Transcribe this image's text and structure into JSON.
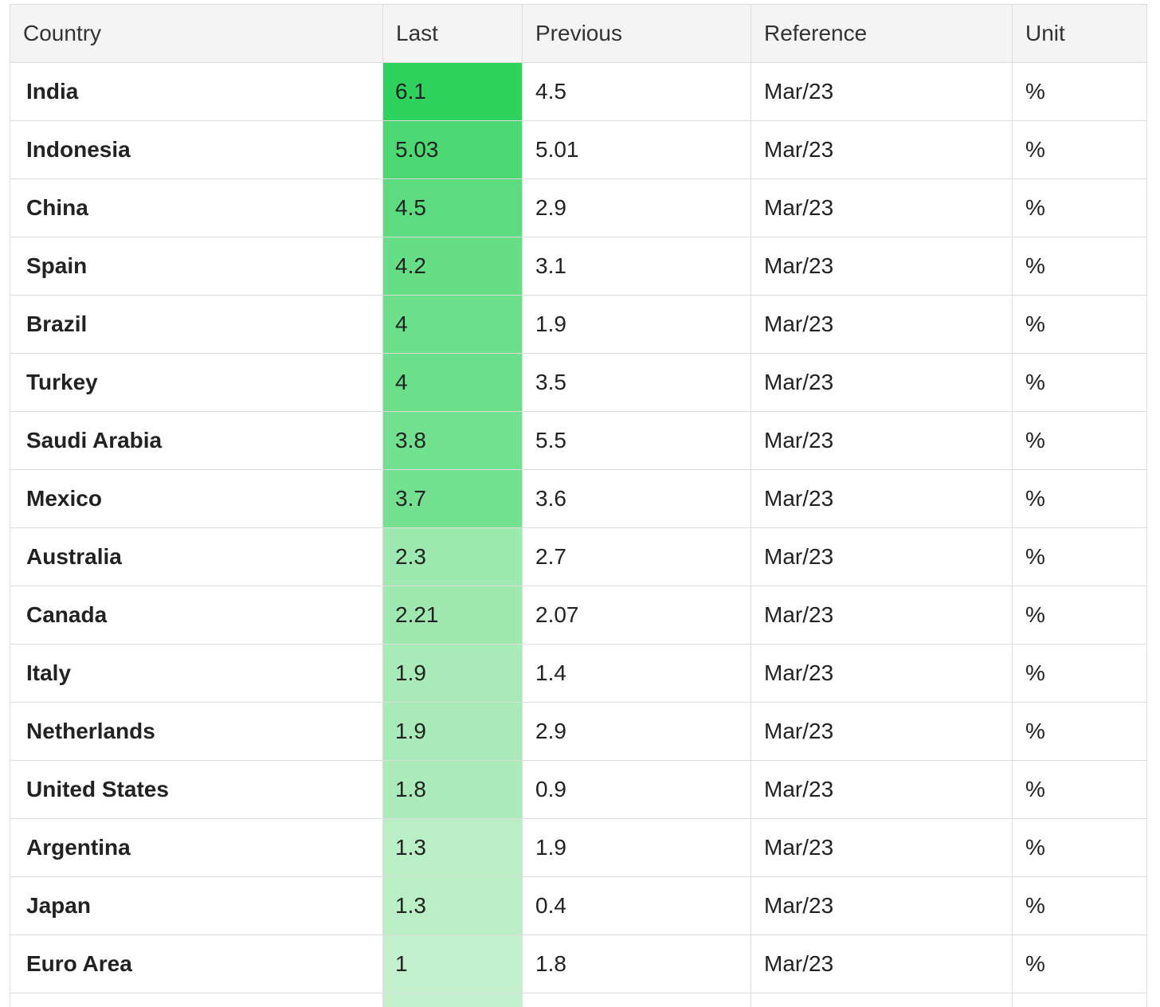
{
  "table": {
    "header": [
      "Country",
      "Last",
      "Previous",
      "Reference",
      "Unit"
    ],
    "rows": [
      [
        "India",
        6.1,
        4.5,
        "Mar/23",
        "%"
      ],
      [
        "Indonesia",
        5.03,
        5.01,
        "Mar/23",
        "%"
      ],
      [
        "China",
        4.5,
        2.9,
        "Mar/23",
        "%"
      ],
      [
        "Spain",
        4.2,
        3.1,
        "Mar/23",
        "%"
      ],
      [
        "Brazil",
        4,
        1.9,
        "Mar/23",
        "%"
      ],
      [
        "Turkey",
        4,
        3.5,
        "Mar/23",
        "%"
      ],
      [
        "Saudi Arabia",
        3.8,
        5.5,
        "Mar/23",
        "%"
      ],
      [
        "Mexico",
        3.7,
        3.6,
        "Mar/23",
        "%"
      ],
      [
        "Australia",
        2.3,
        2.7,
        "Mar/23",
        "%"
      ],
      [
        "Canada",
        2.21,
        2.07,
        "Mar/23",
        "%"
      ],
      [
        "Italy",
        1.9,
        1.4,
        "Mar/23",
        "%"
      ],
      [
        "Netherlands",
        1.9,
        2.9,
        "Mar/23",
        "%"
      ],
      [
        "United States",
        1.8,
        0.9,
        "Mar/23",
        "%"
      ],
      [
        "Argentina",
        1.3,
        1.9,
        "Mar/23",
        "%"
      ],
      [
        "Japan",
        1.3,
        0.4,
        "Mar/23",
        "%"
      ],
      [
        "Euro Area",
        1,
        1.8,
        "Mar/23",
        "%"
      ]
    ]
  }
}
